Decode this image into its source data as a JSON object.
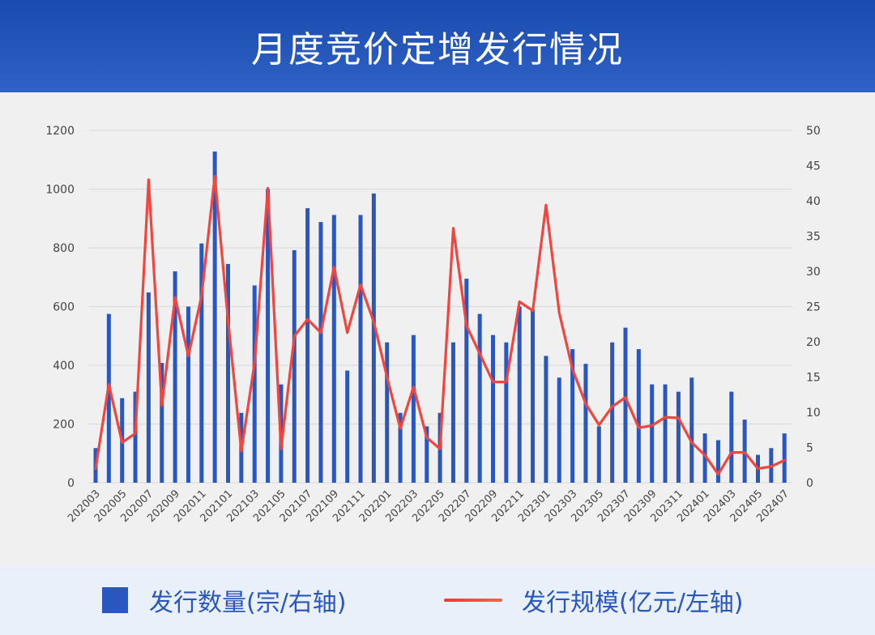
{
  "header": {
    "title": "月度竞价定增发行情况"
  },
  "legend": {
    "bar_label": "发行数量(宗/右轴)",
    "line_label": "发行规模(亿元/左轴)"
  },
  "colors": {
    "bar": "#2a57be",
    "line": "#f2453d",
    "header": "#1a4bb0",
    "grid": "#dcdcdc"
  },
  "chart_data": {
    "type": "bar+line",
    "title": "月度竞价定增发行情况",
    "categories": [
      "202003",
      "202004",
      "202005",
      "202006",
      "202007",
      "202008",
      "202009",
      "202010",
      "202011",
      "202012",
      "202101",
      "202102",
      "202103",
      "202104",
      "202105",
      "202106",
      "202107",
      "202108",
      "202109",
      "202110",
      "202111",
      "202112",
      "202201",
      "202202",
      "202203",
      "202204",
      "202205",
      "202206",
      "202207",
      "202208",
      "202209",
      "202210",
      "202211",
      "202212",
      "202301",
      "202302",
      "202303",
      "202304",
      "202305",
      "202306",
      "202307",
      "202308",
      "202309",
      "202310",
      "202311",
      "202312",
      "202401",
      "202402",
      "202403",
      "202404",
      "202405",
      "202406",
      "202407"
    ],
    "x_tick_labels": [
      "202003",
      "202005",
      "202007",
      "202009",
      "202011",
      "202101",
      "202103",
      "202105",
      "202107",
      "202109",
      "202111",
      "202201",
      "202203",
      "202205",
      "202207",
      "202209",
      "202211",
      "202301",
      "202303",
      "202305",
      "202307",
      "202309",
      "202311",
      "202401",
      "202403",
      "202405",
      "202407"
    ],
    "left_axis": {
      "ylim": [
        0,
        1200
      ],
      "ticks": [
        0,
        200,
        400,
        600,
        800,
        1000,
        1200
      ]
    },
    "right_axis": {
      "ylim": [
        0,
        50
      ],
      "ticks": [
        0,
        5,
        10,
        15,
        20,
        25,
        30,
        35,
        40,
        45,
        50
      ]
    },
    "series": [
      {
        "name": "发行数量(宗/右轴)",
        "type": "bar",
        "axis": "left",
        "values": [
          118,
          575,
          288,
          310,
          648,
          408,
          720,
          600,
          815,
          1128,
          745,
          238,
          672,
          1000,
          335,
          792,
          935,
          888,
          912,
          382,
          912,
          985,
          478,
          238,
          503,
          192,
          238,
          478,
          695,
          575,
          503,
          478,
          600,
          590,
          432,
          358,
          455,
          405,
          192,
          478,
          528,
          455,
          335,
          335,
          310,
          358,
          168,
          145,
          310,
          215,
          95,
          118,
          168
        ]
      },
      {
        "name": "发行规模(亿元/左轴)",
        "type": "line",
        "axis": "right",
        "values": [
          2,
          14,
          5.7,
          7,
          43,
          11,
          26.3,
          18,
          26.5,
          43.5,
          23,
          4.5,
          17,
          41.8,
          4.8,
          20.8,
          23.2,
          21.3,
          30.6,
          21.3,
          28.1,
          22.8,
          15,
          7.7,
          13.6,
          6.4,
          4.8,
          36.1,
          22.3,
          18.3,
          14.3,
          14.3,
          25.7,
          24.4,
          39.4,
          24.1,
          16.1,
          11.2,
          8.2,
          10.8,
          12.1,
          7.8,
          8.1,
          9.3,
          9.2,
          5.7,
          3.9,
          1.2,
          4.3,
          4.3,
          2,
          2.3,
          3.2
        ]
      }
    ],
    "grid": true,
    "legend_position": "bottom"
  }
}
